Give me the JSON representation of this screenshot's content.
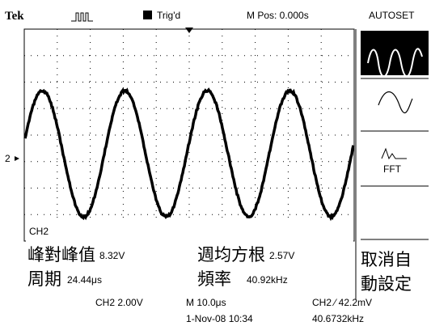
{
  "header": {
    "brand": "Tek",
    "trigger": "Trig'd",
    "position": "M Pos: 0.000s",
    "menu_title": "AUTOSET"
  },
  "menu": {
    "fft": "FFT",
    "cancel_line1": "取消自",
    "cancel_line2": "動設定"
  },
  "channel_marker": "2",
  "measurements": {
    "channel": "CH2",
    "peak_to_peak_label": "峰對峰值",
    "peak_to_peak": "8.32V",
    "rms_label": "週均方根",
    "rms": "2.57V",
    "period_label": "周期",
    "period": "24.44μs",
    "frequency_label": "頻率",
    "frequency": "40.92kHz"
  },
  "footer": {
    "ch_scale": "CH2  2.00V",
    "time_scale": "M 10.0μs",
    "trigger_level": "CH2 ⁄ 42.2mV",
    "date": "1-Nov-08 10:34",
    "trigger_freq": "40.6732kHz"
  }
}
